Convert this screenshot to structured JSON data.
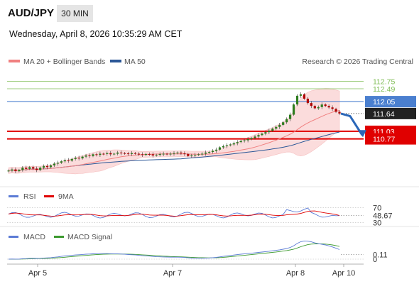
{
  "header": {
    "pair": "AUD/JPY",
    "timeframe": "30 MIN",
    "datetime": "Wednesday, April 8, 2026 10:35:29 AM CET"
  },
  "legend": {
    "ma20_label": "MA 20 + Bollinger Bands",
    "ma50_label": "MA 50",
    "ma20_color": "#f08080",
    "ma50_color": "#2b5797",
    "copyright": "Research © 2026 Trading Central"
  },
  "chart_data": [
    {
      "type": "candlestick",
      "title": "",
      "x_ticks": [
        "Apr 5",
        "Apr 7",
        "Apr 8",
        "Apr 10"
      ],
      "levels": [
        {
          "label": "112.75",
          "value": 112.75,
          "kind": "target",
          "color": "#7dbb52"
        },
        {
          "label": "112.49",
          "value": 112.49,
          "kind": "target",
          "color": "#7dbb52"
        },
        {
          "label": "112.05",
          "value": 112.05,
          "kind": "pivot",
          "color": "#4a7fcf"
        },
        {
          "label": "111.64",
          "value": 111.64,
          "kind": "last-price",
          "color": "#222222"
        },
        {
          "label": "111.03",
          "value": 111.03,
          "kind": "support",
          "color": "#e00000"
        },
        {
          "label": "110.77",
          "value": 110.77,
          "kind": "support",
          "color": "#e00000"
        }
      ],
      "ylim": [
        109.2,
        113.1
      ],
      "closes": [
        109.68,
        109.72,
        109.66,
        109.7,
        109.78,
        109.74,
        109.8,
        109.75,
        109.7,
        109.78,
        109.84,
        109.8,
        109.86,
        109.92,
        109.95,
        110.0,
        110.04,
        110.02,
        110.08,
        110.12,
        110.1,
        110.16,
        110.2,
        110.18,
        110.24,
        110.22,
        110.26,
        110.25,
        110.28,
        110.24,
        110.26,
        110.3,
        110.28,
        110.27,
        110.25,
        110.28,
        110.26,
        110.24,
        110.22,
        110.25,
        110.24,
        110.2,
        110.22,
        110.25,
        110.26,
        110.24,
        110.26,
        110.28,
        110.3,
        110.27,
        110.25,
        110.18,
        110.2,
        110.22,
        110.24,
        110.26,
        110.3,
        110.32,
        110.36,
        110.4,
        110.48,
        110.52,
        110.55,
        110.58,
        110.62,
        110.66,
        110.7,
        110.72,
        110.76,
        110.8,
        110.85,
        110.9,
        110.95,
        111.0,
        111.05,
        111.12,
        111.18,
        111.25,
        111.34,
        111.45,
        111.6,
        111.95,
        112.25,
        112.3,
        112.15,
        112.0,
        111.9,
        111.82,
        111.86,
        111.95,
        111.9,
        111.85,
        111.8,
        111.7,
        111.64
      ],
      "forecast": [
        111.64,
        111.55,
        110.9
      ],
      "series": [
        {
          "name": "MA 20 + Bollinger Bands"
        },
        {
          "name": "MA 50"
        }
      ]
    },
    {
      "type": "line",
      "title": "",
      "series": [
        {
          "name": "RSI"
        },
        {
          "name": "9MA"
        }
      ],
      "current_value": {
        "label": "48.67",
        "value": 48.67
      },
      "levels": [
        {
          "label": "70",
          "value": 70
        },
        {
          "label": "30",
          "value": 30
        }
      ],
      "ylim": [
        25,
        75
      ]
    },
    {
      "type": "line",
      "title": "",
      "series": [
        {
          "name": "MACD"
        },
        {
          "name": "MACD Signal"
        }
      ],
      "current_value": {
        "label": "0.11",
        "value": 0.11
      },
      "levels": [
        {
          "label": "0",
          "value": 0
        }
      ]
    }
  ],
  "rsi_colors": {
    "rsi": "#5b7bd5",
    "ma9": "#e00000"
  },
  "macd_colors": {
    "macd": "#5b7bd5",
    "signal": "#3c9a2f"
  }
}
